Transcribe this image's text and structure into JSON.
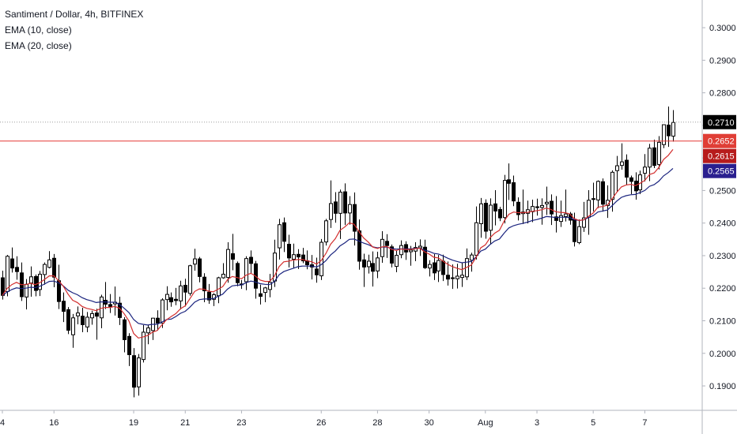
{
  "legend": {
    "title": "Santiment / Dollar, 4h, BITFINEX",
    "ema10": "EMA (10, close)",
    "ema20": "EMA (20, close)"
  },
  "chart_data": {
    "type": "candlestick",
    "symbol": "Santiment / Dollar",
    "interval": "4h",
    "exchange": "BITFINEX",
    "ylim": [
      0.1825,
      0.3085
    ],
    "yticks": [
      0.19,
      0.2,
      0.21,
      0.22,
      0.23,
      0.24,
      0.25,
      0.26,
      0.27,
      0.28,
      0.29,
      0.3
    ],
    "ytick_labels": [
      "0.1900",
      "0.2000",
      "0.2100",
      "0.2200",
      "0.2300",
      "0.2400",
      "0.2500",
      "0.2600",
      "0.2700",
      "0.2800",
      "0.2900",
      "0.3000"
    ],
    "xticks": [
      {
        "label": "4",
        "index": 0
      },
      {
        "label": "16",
        "index": 11
      },
      {
        "label": "19",
        "index": 28
      },
      {
        "label": "21",
        "index": 39
      },
      {
        "label": "23",
        "index": 51
      },
      {
        "label": "26",
        "index": 68
      },
      {
        "label": "28",
        "index": 80
      },
      {
        "label": "30",
        "index": 91
      },
      {
        "label": "Aug",
        "index": 103
      },
      {
        "label": "3",
        "index": 114
      },
      {
        "label": "5",
        "index": 126
      },
      {
        "label": "7",
        "index": 137
      }
    ],
    "candles": [
      [
        0.2232,
        0.2254,
        0.2165,
        0.2178
      ],
      [
        0.219,
        0.2302,
        0.2175,
        0.2298
      ],
      [
        0.229,
        0.2325,
        0.2248,
        0.2262
      ],
      [
        0.2264,
        0.2298,
        0.2226,
        0.2251
      ],
      [
        0.2247,
        0.2279,
        0.2161,
        0.2174
      ],
      [
        0.2173,
        0.2228,
        0.2135,
        0.2212
      ],
      [
        0.2216,
        0.2267,
        0.2174,
        0.2235
      ],
      [
        0.2236,
        0.2242,
        0.2175,
        0.2193
      ],
      [
        0.2196,
        0.2253,
        0.2176,
        0.2243
      ],
      [
        0.2242,
        0.2279,
        0.2211,
        0.2273
      ],
      [
        0.2264,
        0.2314,
        0.2261,
        0.2287
      ],
      [
        0.2292,
        0.2305,
        0.2203,
        0.2234
      ],
      [
        0.2223,
        0.2272,
        0.2136,
        0.2159
      ],
      [
        0.216,
        0.2187,
        0.2096,
        0.2129
      ],
      [
        0.2134,
        0.2142,
        0.2059,
        0.2071
      ],
      [
        0.2057,
        0.2121,
        0.2017,
        0.2109
      ],
      [
        0.2115,
        0.2144,
        0.2089,
        0.2124
      ],
      [
        0.2114,
        0.214,
        0.2065,
        0.2088
      ],
      [
        0.2081,
        0.2127,
        0.2065,
        0.2111
      ],
      [
        0.2109,
        0.2131,
        0.2088,
        0.2122
      ],
      [
        0.2124,
        0.2137,
        0.2042,
        0.2114
      ],
      [
        0.2109,
        0.218,
        0.2077,
        0.2173
      ],
      [
        0.2163,
        0.2219,
        0.2136,
        0.2151
      ],
      [
        0.215,
        0.2182,
        0.2124,
        0.2144
      ],
      [
        0.2152,
        0.2205,
        0.2116,
        0.2157
      ],
      [
        0.2154,
        0.2174,
        0.2087,
        0.211
      ],
      [
        0.2103,
        0.2111,
        0.2003,
        0.2042
      ],
      [
        0.2052,
        0.2062,
        0.1961,
        0.1996
      ],
      [
        0.1993,
        0.2016,
        0.1865,
        0.1896
      ],
      [
        0.1897,
        0.1998,
        0.187,
        0.1986
      ],
      [
        0.1981,
        0.2087,
        0.1972,
        0.2065
      ],
      [
        0.2063,
        0.2087,
        0.2028,
        0.2078
      ],
      [
        0.207,
        0.2109,
        0.2041,
        0.2108
      ],
      [
        0.2108,
        0.2132,
        0.207,
        0.2093
      ],
      [
        0.2093,
        0.2169,
        0.2078,
        0.2164
      ],
      [
        0.2165,
        0.2206,
        0.2132,
        0.2181
      ],
      [
        0.2171,
        0.2187,
        0.2143,
        0.2158
      ],
      [
        0.2166,
        0.2201,
        0.2148,
        0.2162
      ],
      [
        0.2161,
        0.2223,
        0.2135,
        0.2207
      ],
      [
        0.2209,
        0.2229,
        0.2144,
        0.2188
      ],
      [
        0.2184,
        0.2272,
        0.2177,
        0.2269
      ],
      [
        0.2274,
        0.2321,
        0.2254,
        0.229
      ],
      [
        0.229,
        0.2296,
        0.2218,
        0.2236
      ],
      [
        0.2234,
        0.2246,
        0.2157,
        0.2192
      ],
      [
        0.2188,
        0.2213,
        0.2152,
        0.2164
      ],
      [
        0.2166,
        0.2185,
        0.2145,
        0.218
      ],
      [
        0.2177,
        0.2235,
        0.2154,
        0.2232
      ],
      [
        0.2232,
        0.2277,
        0.2229,
        0.2243
      ],
      [
        0.2233,
        0.2341,
        0.2217,
        0.2319
      ],
      [
        0.2306,
        0.2367,
        0.2255,
        0.2289
      ],
      [
        0.2276,
        0.2282,
        0.2206,
        0.2217
      ],
      [
        0.2212,
        0.2225,
        0.2198,
        0.2213
      ],
      [
        0.222,
        0.2298,
        0.2194,
        0.2291
      ],
      [
        0.2295,
        0.2316,
        0.2244,
        0.2276
      ],
      [
        0.2275,
        0.2284,
        0.2168,
        0.22
      ],
      [
        0.2183,
        0.2211,
        0.215,
        0.2175
      ],
      [
        0.2187,
        0.2204,
        0.2157,
        0.2201
      ],
      [
        0.2196,
        0.2244,
        0.2172,
        0.2218
      ],
      [
        0.2222,
        0.2349,
        0.2204,
        0.2308
      ],
      [
        0.2324,
        0.2413,
        0.2288,
        0.2395
      ],
      [
        0.2401,
        0.2417,
        0.2311,
        0.2344
      ],
      [
        0.2335,
        0.2364,
        0.2264,
        0.2293
      ],
      [
        0.2289,
        0.2337,
        0.2261,
        0.2303
      ],
      [
        0.2304,
        0.232,
        0.2259,
        0.2296
      ],
      [
        0.2302,
        0.2324,
        0.2277,
        0.2284
      ],
      [
        0.2284,
        0.2316,
        0.2258,
        0.2272
      ],
      [
        0.2272,
        0.2302,
        0.2227,
        0.2265
      ],
      [
        0.2259,
        0.2294,
        0.2217,
        0.2241
      ],
      [
        0.2238,
        0.2351,
        0.2225,
        0.2341
      ],
      [
        0.2342,
        0.2413,
        0.2331,
        0.2407
      ],
      [
        0.2411,
        0.2531,
        0.2385,
        0.246
      ],
      [
        0.2465,
        0.2495,
        0.2401,
        0.243
      ],
      [
        0.243,
        0.2503,
        0.2351,
        0.2495
      ],
      [
        0.2496,
        0.2522,
        0.2394,
        0.2431
      ],
      [
        0.2431,
        0.2483,
        0.2395,
        0.2457
      ],
      [
        0.2457,
        0.2494,
        0.2331,
        0.2375
      ],
      [
        0.2376,
        0.2411,
        0.2257,
        0.2283
      ],
      [
        0.2287,
        0.2306,
        0.2204,
        0.2265
      ],
      [
        0.2266,
        0.2303,
        0.2245,
        0.2283
      ],
      [
        0.2276,
        0.2313,
        0.2205,
        0.2252
      ],
      [
        0.2253,
        0.2312,
        0.2231,
        0.2293
      ],
      [
        0.2297,
        0.2375,
        0.2278,
        0.235
      ],
      [
        0.2344,
        0.2366,
        0.2293,
        0.2331
      ],
      [
        0.2327,
        0.2334,
        0.2264,
        0.2277
      ],
      [
        0.2267,
        0.2315,
        0.2249,
        0.2301
      ],
      [
        0.2303,
        0.2347,
        0.2292,
        0.2331
      ],
      [
        0.2334,
        0.2344,
        0.2287,
        0.2311
      ],
      [
        0.2312,
        0.233,
        0.2269,
        0.2317
      ],
      [
        0.2314,
        0.2341,
        0.2283,
        0.2325
      ],
      [
        0.2324,
        0.235,
        0.2299,
        0.2329
      ],
      [
        0.2326,
        0.2349,
        0.2259,
        0.2263
      ],
      [
        0.2262,
        0.2286,
        0.2236,
        0.2273
      ],
      [
        0.2278,
        0.2305,
        0.2225,
        0.2247
      ],
      [
        0.2253,
        0.2302,
        0.2219,
        0.2285
      ],
      [
        0.2283,
        0.2303,
        0.2222,
        0.2242
      ],
      [
        0.224,
        0.2282,
        0.2208,
        0.2228
      ],
      [
        0.223,
        0.2273,
        0.2198,
        0.2232
      ],
      [
        0.2229,
        0.2275,
        0.2199,
        0.2237
      ],
      [
        0.2233,
        0.2277,
        0.2204,
        0.224
      ],
      [
        0.2235,
        0.2322,
        0.2225,
        0.2291
      ],
      [
        0.2286,
        0.2309,
        0.2251,
        0.2302
      ],
      [
        0.2301,
        0.2451,
        0.2288,
        0.2401
      ],
      [
        0.2398,
        0.2477,
        0.2355,
        0.2459
      ],
      [
        0.2461,
        0.2473,
        0.2352,
        0.2375
      ],
      [
        0.2378,
        0.2476,
        0.2334,
        0.2455
      ],
      [
        0.2459,
        0.2501,
        0.2393,
        0.2437
      ],
      [
        0.2442,
        0.245,
        0.2406,
        0.2416
      ],
      [
        0.2417,
        0.2548,
        0.2399,
        0.2531
      ],
      [
        0.2533,
        0.2583,
        0.2471,
        0.2522
      ],
      [
        0.2524,
        0.2546,
        0.2452,
        0.2468
      ],
      [
        0.2464,
        0.2479,
        0.2408,
        0.2426
      ],
      [
        0.2429,
        0.2503,
        0.2397,
        0.2434
      ],
      [
        0.243,
        0.2469,
        0.2399,
        0.2441
      ],
      [
        0.2435,
        0.2472,
        0.2403,
        0.2451
      ],
      [
        0.245,
        0.2475,
        0.2423,
        0.2448
      ],
      [
        0.2448,
        0.2476,
        0.2395,
        0.2454
      ],
      [
        0.2459,
        0.2512,
        0.2425,
        0.2464
      ],
      [
        0.2467,
        0.2488,
        0.2394,
        0.2428
      ],
      [
        0.2419,
        0.2483,
        0.2371,
        0.2408
      ],
      [
        0.2405,
        0.2469,
        0.2388,
        0.2423
      ],
      [
        0.242,
        0.2503,
        0.2405,
        0.2428
      ],
      [
        0.2428,
        0.2434,
        0.2395,
        0.2409
      ],
      [
        0.2412,
        0.2432,
        0.2328,
        0.2343
      ],
      [
        0.234,
        0.2411,
        0.2335,
        0.2389
      ],
      [
        0.2387,
        0.2465,
        0.2373,
        0.2416
      ],
      [
        0.2418,
        0.2501,
        0.2364,
        0.247
      ],
      [
        0.2475,
        0.2524,
        0.2436,
        0.2474
      ],
      [
        0.2471,
        0.2531,
        0.2446,
        0.2528
      ],
      [
        0.2527,
        0.2537,
        0.2435,
        0.2458
      ],
      [
        0.2454,
        0.2516,
        0.2416,
        0.247
      ],
      [
        0.2473,
        0.2562,
        0.2435,
        0.2556
      ],
      [
        0.2561,
        0.2606,
        0.2496,
        0.2576
      ],
      [
        0.2577,
        0.2645,
        0.2564,
        0.2588
      ],
      [
        0.2593,
        0.2611,
        0.2517,
        0.2541
      ],
      [
        0.2539,
        0.2546,
        0.2489,
        0.2528
      ],
      [
        0.2529,
        0.2556,
        0.2472,
        0.2499
      ],
      [
        0.2502,
        0.2561,
        0.2489,
        0.2548
      ],
      [
        0.2553,
        0.2612,
        0.2528,
        0.2572
      ],
      [
        0.2572,
        0.2643,
        0.2529,
        0.263
      ],
      [
        0.2631,
        0.2656,
        0.2569,
        0.2577
      ],
      [
        0.258,
        0.2667,
        0.2565,
        0.2648
      ],
      [
        0.2641,
        0.2702,
        0.263,
        0.2702
      ],
      [
        0.2701,
        0.2758,
        0.2634,
        0.2668
      ],
      [
        0.2667,
        0.2747,
        0.265,
        0.2709
      ]
    ],
    "ema10": [
      0.2178,
      0.2199,
      0.2211,
      0.2218,
      0.2211,
      0.2211,
      0.2215,
      0.2211,
      0.2217,
      0.2227,
      0.2238,
      0.2238,
      0.2223,
      0.2206,
      0.2182,
      0.2163,
      0.2156,
      0.2144,
      0.2138,
      0.2135,
      0.2131,
      0.2138,
      0.2141,
      0.2141,
      0.2144,
      0.2138,
      0.2121,
      0.2099,
      0.2061,
      0.2047,
      0.205,
      0.2055,
      0.2065,
      0.207,
      0.2087,
      0.2103,
      0.2113,
      0.2122,
      0.2137,
      0.2146,
      0.2168,
      0.219,
      0.2198,
      0.2197,
      0.2191,
      0.2189,
      0.2197,
      0.2205,
      0.2226,
      0.2236,
      0.2233,
      0.2229,
      0.224,
      0.2246,
      0.2237,
      0.2225,
      0.2221,
      0.2221,
      0.2237,
      0.2266,
      0.2281,
      0.2283,
      0.2286,
      0.2288,
      0.2288,
      0.2284,
      0.2281,
      0.2274,
      0.2285,
      0.2307,
      0.2335,
      0.2352,
      0.2378,
      0.2388,
      0.2401,
      0.2396,
      0.2375,
      0.2355,
      0.2342,
      0.2326,
      0.2322,
      0.2327,
      0.2328,
      0.2319,
      0.2316,
      0.232,
      0.2319,
      0.2319,
      0.2321,
      0.2323,
      0.2312,
      0.2305,
      0.2295,
      0.2293,
      0.2283,
      0.2273,
      0.2266,
      0.2261,
      0.2257,
      0.2264,
      0.2271,
      0.2294,
      0.2324,
      0.2333,
      0.2355,
      0.2369,
      0.2378,
      0.2406,
      0.2427,
      0.2434,
      0.2432,
      0.2432,
      0.2433,
      0.2436,
      0.2438,
      0.2441,
      0.2446,
      0.2442,
      0.2435,
      0.2433,
      0.2432,
      0.2428,
      0.2413,
      0.2408,
      0.241,
      0.2421,
      0.2431,
      0.2449,
      0.2451,
      0.2455,
      0.2474,
      0.2494,
      0.2511,
      0.2517,
      0.2519,
      0.2515,
      0.2522,
      0.2531,
      0.2549,
      0.2554,
      0.2571,
      0.2595,
      0.2608,
      0.2626
    ],
    "ema20": [
      0.2178,
      0.2188,
      0.2196,
      0.2201,
      0.2199,
      0.22,
      0.2203,
      0.2202,
      0.2206,
      0.2213,
      0.2221,
      0.2222,
      0.2216,
      0.2207,
      0.2194,
      0.2186,
      0.218,
      0.2171,
      0.2165,
      0.2161,
      0.2156,
      0.2158,
      0.2158,
      0.2157,
      0.2157,
      0.215,
      0.2138,
      0.2125,
      0.2104,
      0.2092,
      0.2089,
      0.2087,
      0.2089,
      0.2089,
      0.2096,
      0.2104,
      0.2105,
      0.2113,
      0.2123,
      0.2129,
      0.2142,
      0.2157,
      0.2165,
      0.2167,
      0.2167,
      0.2168,
      0.2175,
      0.2182,
      0.2197,
      0.2207,
      0.2209,
      0.221,
      0.2217,
      0.2222,
      0.2219,
      0.2214,
      0.2212,
      0.2211,
      0.222,
      0.2241,
      0.2251,
      0.2256,
      0.2261,
      0.2266,
      0.2268,
      0.2268,
      0.2268,
      0.2265,
      0.2272,
      0.2285,
      0.2302,
      0.2314,
      0.233,
      0.2339,
      0.235,
      0.2351,
      0.2345,
      0.2339,
      0.2334,
      0.2327,
      0.2324,
      0.2326,
      0.2326,
      0.2322,
      0.232,
      0.2321,
      0.2321,
      0.2321,
      0.2322,
      0.2323,
      0.2317,
      0.2313,
      0.2307,
      0.2305,
      0.2299,
      0.2292,
      0.2286,
      0.2282,
      0.2278,
      0.228,
      0.2282,
      0.2296,
      0.2314,
      0.232,
      0.2334,
      0.2345,
      0.2351,
      0.2369,
      0.2385,
      0.2392,
      0.2396,
      0.2399,
      0.2403,
      0.2408,
      0.2411,
      0.2415,
      0.242,
      0.2419,
      0.2417,
      0.2418,
      0.2418,
      0.2417,
      0.241,
      0.2408,
      0.241,
      0.2417,
      0.2423,
      0.2434,
      0.2437,
      0.244,
      0.2453,
      0.2467,
      0.2479,
      0.2484,
      0.2487,
      0.2488,
      0.2494,
      0.25,
      0.2513,
      0.2518,
      0.2529,
      0.2545,
      0.2555,
      0.2568
    ],
    "last_price": 0.271,
    "horizontal_line": 0.2652,
    "badges": [
      {
        "label": "0.2710",
        "value": 0.271,
        "color": "#000000"
      },
      {
        "label": "0.2652",
        "value": 0.2652,
        "color": "#e03e36"
      },
      {
        "label": "0.2615",
        "value": 0.2615,
        "color": "#b71c1c"
      },
      {
        "label": "0.2565",
        "value": 0.2565,
        "color": "#2a1f8f"
      }
    ],
    "colors": {
      "ema10": "#d32f2f",
      "ema20": "#1a237e",
      "up_fill": "#ffffff",
      "down_fill": "#000000",
      "candle_outline": "#000000",
      "hline": "#e53935",
      "lastline": "#9e9e9e",
      "axis": "#b2b5be"
    }
  }
}
